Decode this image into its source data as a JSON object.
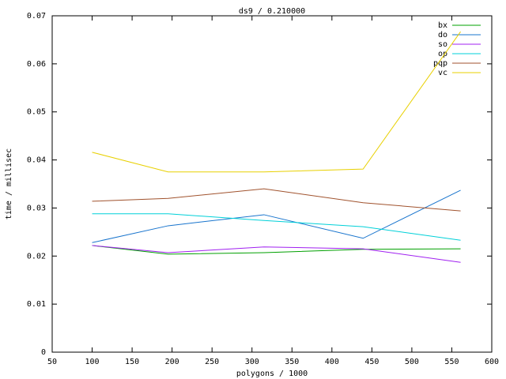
{
  "chart_data": {
    "type": "line",
    "title": "ds9 / 0.210000",
    "x_label": "polygons / 1000",
    "y_label": "time / millisec",
    "x": [
      100,
      195,
      315,
      439,
      561
    ],
    "series": [
      {
        "name": "bx",
        "color": "#00a000",
        "values": [
          0.0222,
          0.0204,
          0.0207,
          0.0214,
          0.0215
        ]
      },
      {
        "name": "do",
        "color": "#1874cd",
        "values": [
          0.0228,
          0.0263,
          0.0286,
          0.0237,
          0.0337
        ]
      },
      {
        "name": "so",
        "color": "#a020f0",
        "values": [
          0.0222,
          0.0207,
          0.0219,
          0.0215,
          0.0187
        ]
      },
      {
        "name": "op",
        "color": "#00d0d8",
        "values": [
          0.0288,
          0.0288,
          0.0274,
          0.0261,
          0.0233
        ]
      },
      {
        "name": "pqp",
        "color": "#a0522d",
        "values": [
          0.0314,
          0.032,
          0.034,
          0.0311,
          0.0294
        ]
      },
      {
        "name": "vc",
        "color": "#e8d000",
        "values": [
          0.0416,
          0.0375,
          0.0375,
          0.0381,
          0.0667
        ]
      }
    ],
    "xlim": [
      50,
      600
    ],
    "xticks": [
      50,
      100,
      150,
      200,
      250,
      300,
      350,
      400,
      450,
      500,
      550,
      600
    ],
    "ylim": [
      0,
      0.07
    ],
    "yticks": [
      0,
      0.01,
      0.02,
      0.03,
      0.04,
      0.05,
      0.06,
      0.07
    ],
    "legend": "top-right"
  }
}
